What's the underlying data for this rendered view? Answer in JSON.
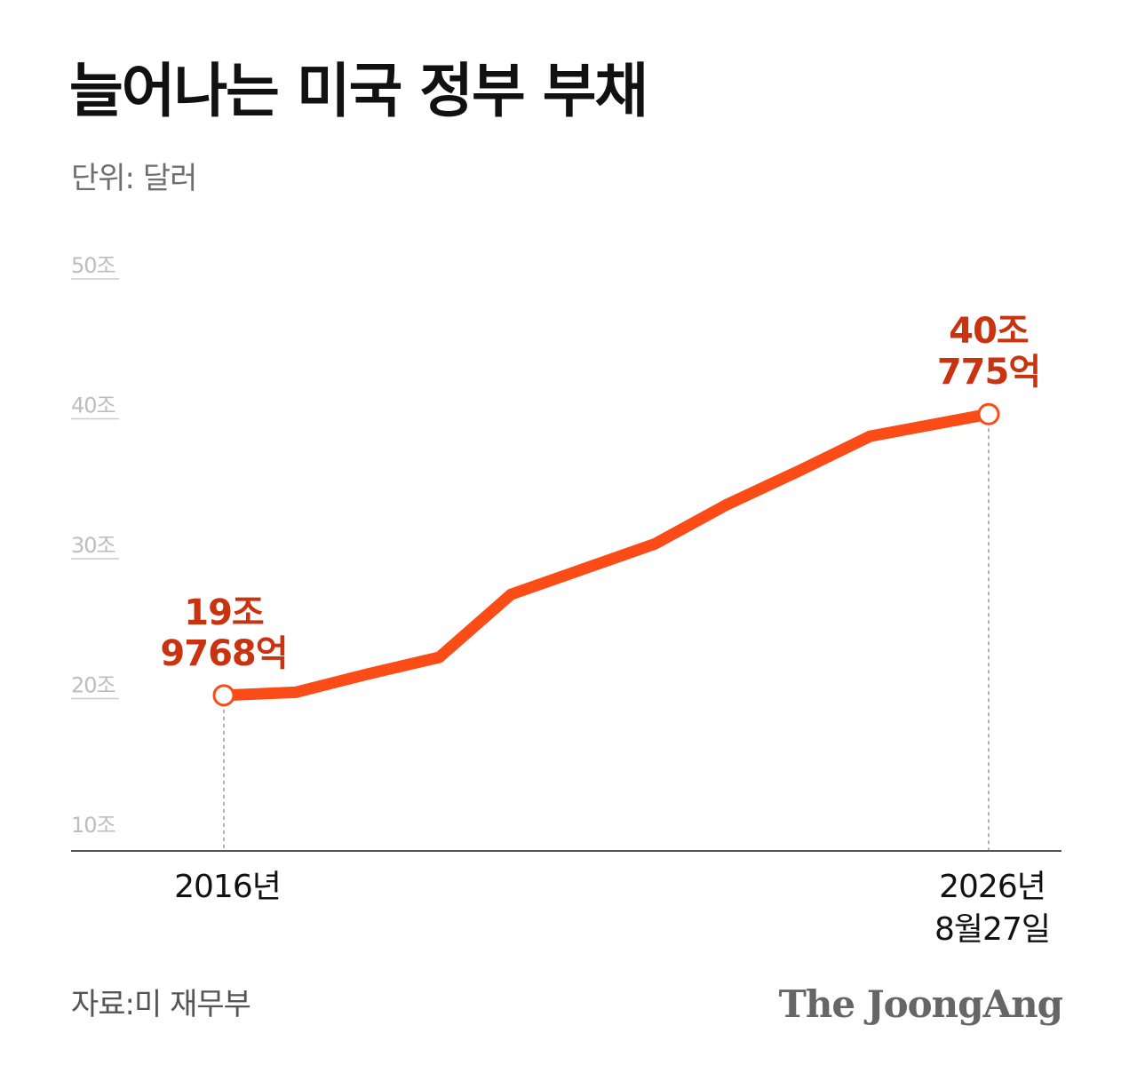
{
  "title": "늘어나는 미국 정부 부채",
  "unit_label": "단위: 달러",
  "source": "자료:미 재무부",
  "brand": "The JoongAng",
  "colors": {
    "line": "#fb4b17",
    "annotation": "#c93310",
    "grid": "#cccccc",
    "tick_text": "#bdbdbd",
    "axis": "#555555"
  },
  "chart_data": {
    "type": "line",
    "title": "늘어나는 미국 정부 부채",
    "ylabel": "",
    "xlabel": "",
    "ylim": [
      10,
      50
    ],
    "xlim": [
      2016,
      2026.65
    ],
    "yticks": [
      10,
      20,
      30,
      40,
      50
    ],
    "ytick_labels": [
      "10조",
      "20조",
      "30조",
      "40조",
      "50조"
    ],
    "xtick_labels": [
      {
        "x": 2016,
        "label": "2016년"
      },
      {
        "x": 2026.65,
        "label": "2026년",
        "label2": "8월27일"
      }
    ],
    "grid": true,
    "series": [
      {
        "x": [
          2016,
          2017,
          2018,
          2019,
          2020,
          2021,
          2022,
          2023,
          2024,
          2025,
          2026.65
        ],
        "values": [
          19.98,
          20.2,
          21.5,
          22.7,
          27.2,
          29.0,
          30.8,
          33.6,
          36.0,
          38.5,
          40.08
        ]
      }
    ],
    "annotations": [
      {
        "x": 2016,
        "value": 19.98,
        "line1": "19조",
        "line2": "9768억",
        "position": "above"
      },
      {
        "x": 2026.65,
        "value": 40.08,
        "line1": "40조",
        "line2": "775억",
        "position": "above"
      }
    ]
  }
}
